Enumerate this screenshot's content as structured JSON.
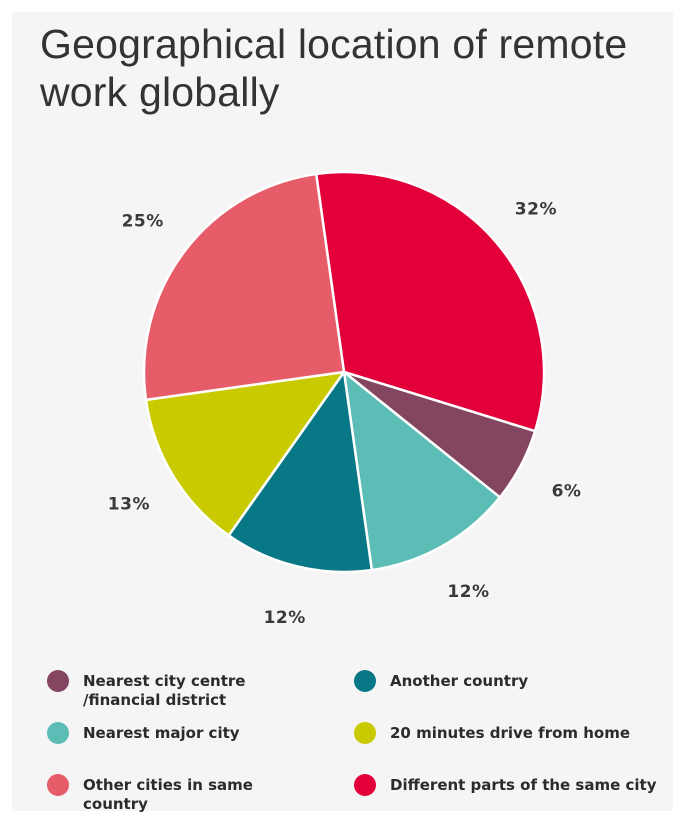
{
  "chart_data": {
    "type": "pie",
    "title": "Geographical location of remote work globally",
    "slices": [
      {
        "label": "Different parts of the same city",
        "value": 32,
        "display": "32%",
        "color": "#e3003a"
      },
      {
        "label": "Nearest city centre\n/financial district",
        "value": 6,
        "display": "6%",
        "color": "#83455f"
      },
      {
        "label": "Nearest major city",
        "value": 12,
        "display": "12%",
        "color": "#5cbcb6"
      },
      {
        "label": "Another country",
        "value": 12,
        "display": "12%",
        "color": "#087886"
      },
      {
        "label": "20 minutes drive from home",
        "value": 13,
        "display": "13%",
        "color": "#c9cb00"
      },
      {
        "label": "Other cities in same country",
        "value": 25,
        "display": "25%",
        "color": "#e65c68"
      }
    ],
    "legend": [
      {
        "label": "Nearest city centre\n/financial district",
        "color": "#83455f"
      },
      {
        "label": "Another country",
        "color": "#087886"
      },
      {
        "label": "Nearest major city",
        "color": "#5cbcb6"
      },
      {
        "label": "20 minutes drive from home",
        "color": "#c9cb00"
      },
      {
        "label": "Other cities in same country",
        "color": "#e65c68"
      },
      {
        "label": "Different parts of the same city",
        "color": "#e3003a"
      }
    ]
  }
}
